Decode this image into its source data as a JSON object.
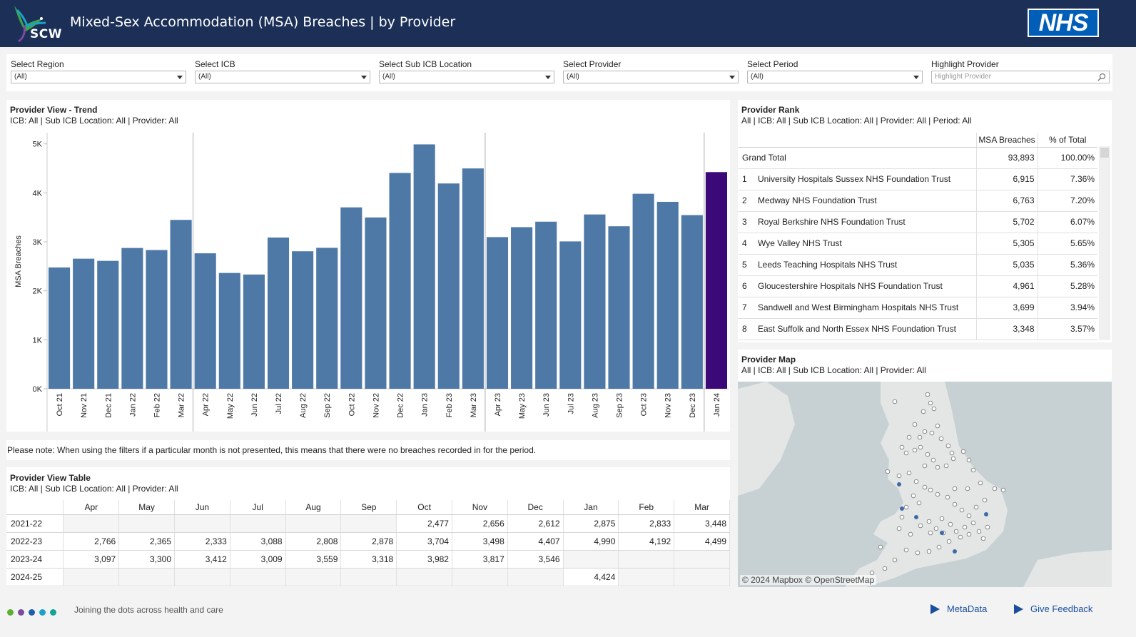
{
  "header": {
    "logo_text": "SCW",
    "title": "Mixed-Sex Accommodation (MSA) Breaches | by Provider",
    "nhs_logo": "NHS"
  },
  "filters": [
    {
      "label": "Select Region",
      "value": "(All)"
    },
    {
      "label": "Select ICB",
      "value": "(All)"
    },
    {
      "label": "Select Sub ICB Location",
      "value": "(All)"
    },
    {
      "label": "Select Provider",
      "value": "(All)"
    },
    {
      "label": "Select Period",
      "value": "(All)"
    }
  ],
  "highlight": {
    "label": "Highlight Provider",
    "placeholder": "Highlight Provider"
  },
  "trend": {
    "title": "Provider View - Trend",
    "subtitle": "ICB: All  | Sub ICB Location: All  | Provider: All"
  },
  "chart_data": {
    "type": "bar",
    "ylabel": "MSA Breaches",
    "ylim": [
      0,
      5200
    ],
    "yticks": [
      "0K",
      "1K",
      "2K",
      "3K",
      "4K",
      "5K"
    ],
    "categories": [
      "Oct 21",
      "Nov 21",
      "Dec 21",
      "Jan 22",
      "Feb 22",
      "Mar 22",
      "Apr 22",
      "May 22",
      "Jun 22",
      "Jul 22",
      "Aug 22",
      "Sep 22",
      "Oct 22",
      "Nov 22",
      "Dec 22",
      "Jan 23",
      "Feb 23",
      "Mar 23",
      "Apr 23",
      "May 23",
      "Jun 23",
      "Jul 23",
      "Aug 23",
      "Sep 23",
      "Oct 23",
      "Nov 23",
      "Dec 23",
      "Jan 24"
    ],
    "values": [
      2477,
      2656,
      2612,
      2875,
      2833,
      3448,
      2766,
      2365,
      2333,
      3088,
      2808,
      2878,
      3704,
      3498,
      4407,
      4990,
      4192,
      4499,
      3097,
      3300,
      3412,
      3009,
      3559,
      3318,
      3982,
      3817,
      3546,
      4424
    ],
    "bar_color": "#4e79a7",
    "highlight_color": "#3b0a78",
    "grid": false
  },
  "note": "Please note: When using the filters if a particular month is not presented, this means that there were no breaches recorded in for the period.",
  "table": {
    "title": "Provider View Table",
    "subtitle": "ICB: All  | Sub ICB Location: All  | Provider: All",
    "columns": [
      "Apr",
      "May",
      "Jun",
      "Jul",
      "Aug",
      "Sep",
      "Oct",
      "Nov",
      "Dec",
      "Jan",
      "Feb",
      "Mar"
    ],
    "rows": [
      {
        "year": "2021-22",
        "cells": [
          "",
          "",
          "",
          "",
          "",
          "",
          "2,477",
          "2,656",
          "2,612",
          "2,875",
          "2,833",
          "3,448"
        ]
      },
      {
        "year": "2022-23",
        "cells": [
          "2,766",
          "2,365",
          "2,333",
          "3,088",
          "2,808",
          "2,878",
          "3,704",
          "3,498",
          "4,407",
          "4,990",
          "4,192",
          "4,499"
        ]
      },
      {
        "year": "2023-24",
        "cells": [
          "3,097",
          "3,300",
          "3,412",
          "3,009",
          "3,559",
          "3,318",
          "3,982",
          "3,817",
          "3,546",
          "",
          "",
          ""
        ]
      },
      {
        "year": "2024-25",
        "cells": [
          "",
          "",
          "",
          "",
          "",
          "",
          "",
          "",
          "",
          "4,424",
          "",
          ""
        ]
      }
    ]
  },
  "rank": {
    "title": "Provider Rank",
    "subtitle": "All  | ICB: All  | Sub ICB Location: All  | Provider: All  | Period: All",
    "col_breaches": "MSA Breaches",
    "col_pct": "% of Total",
    "grand_total": {
      "label": "Grand Total",
      "breaches": "93,893",
      "pct": "100.00%"
    },
    "rows": [
      {
        "rank": "1",
        "name": "University Hospitals Sussex NHS Foundation Trust",
        "breaches": "6,915",
        "pct": "7.36%"
      },
      {
        "rank": "2",
        "name": "Medway NHS Foundation Trust",
        "breaches": "6,763",
        "pct": "7.20%"
      },
      {
        "rank": "3",
        "name": "Royal Berkshire NHS Foundation Trust",
        "breaches": "5,702",
        "pct": "6.07%"
      },
      {
        "rank": "4",
        "name": "Wye Valley NHS Trust",
        "breaches": "5,305",
        "pct": "5.65%"
      },
      {
        "rank": "5",
        "name": "Leeds Teaching Hospitals NHS Trust",
        "breaches": "5,035",
        "pct": "5.36%"
      },
      {
        "rank": "6",
        "name": "Gloucestershire Hospitals NHS Foundation Trust",
        "breaches": "4,961",
        "pct": "5.28%"
      },
      {
        "rank": "7",
        "name": "Sandwell and West Birmingham Hospitals NHS Trust",
        "breaches": "3,699",
        "pct": "3.94%"
      },
      {
        "rank": "8",
        "name": "East Suffolk and North Essex NHS Foundation Trust",
        "breaches": "3,348",
        "pct": "3.57%"
      }
    ]
  },
  "map": {
    "title": "Provider Map",
    "subtitle": "All  | ICB: All  | Sub ICB Location: All  | Provider: All",
    "credit": "© 2024 Mapbox  © OpenStreetMap"
  },
  "footer": {
    "dot_colors": [
      "#5bb031",
      "#7d4a9f",
      "#1e5fae",
      "#1aa3c8",
      "#12a39a"
    ],
    "tagline": "Joining the dots across health and care",
    "metadata": "MetaData",
    "feedback": "Give Feedback"
  }
}
